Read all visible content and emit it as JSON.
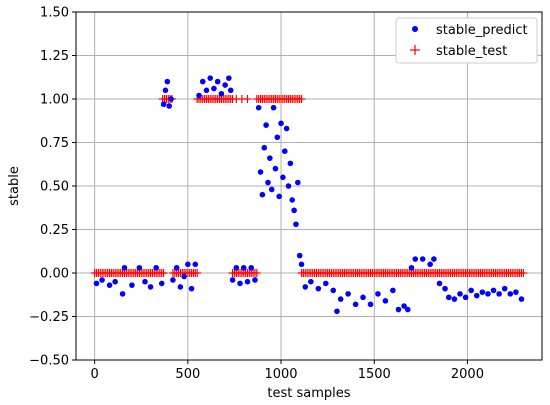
{
  "chart_data": {
    "type": "scatter",
    "xlabel": "test samples",
    "ylabel": "stable",
    "xlim": [
      -100,
      2400
    ],
    "ylim": [
      -0.5,
      1.5
    ],
    "xticks": [
      0,
      500,
      1000,
      1500,
      2000
    ],
    "xtick_labels": [
      "0",
      "500",
      "1000",
      "1500",
      "2000"
    ],
    "yticks": [
      -0.5,
      -0.25,
      0.0,
      0.25,
      0.5,
      0.75,
      1.0,
      1.25,
      1.5
    ],
    "ytick_labels": [
      "−0.50",
      "−0.25",
      "0.00",
      "0.25",
      "0.50",
      "0.75",
      "1.00",
      "1.25",
      "1.50"
    ],
    "grid": true,
    "legend_position": "top-right",
    "series": [
      {
        "name": "stable_predict",
        "marker": "dot",
        "color": "#0000ff",
        "approximate_points": [
          [
            10,
            -0.06
          ],
          [
            40,
            -0.04
          ],
          [
            80,
            -0.07
          ],
          [
            110,
            -0.05
          ],
          [
            150,
            -0.12
          ],
          [
            160,
            0.03
          ],
          [
            200,
            -0.07
          ],
          [
            240,
            0.03
          ],
          [
            270,
            -0.05
          ],
          [
            300,
            -0.08
          ],
          [
            330,
            0.03
          ],
          [
            360,
            -0.06
          ],
          [
            370,
            0.97
          ],
          [
            380,
            1.05
          ],
          [
            390,
            1.1
          ],
          [
            400,
            0.96
          ],
          [
            410,
            1.0
          ],
          [
            420,
            -0.04
          ],
          [
            440,
            0.03
          ],
          [
            460,
            -0.08
          ],
          [
            480,
            -0.02
          ],
          [
            500,
            0.05
          ],
          [
            520,
            -0.09
          ],
          [
            540,
            0.05
          ],
          [
            560,
            1.02
          ],
          [
            580,
            1.1
          ],
          [
            600,
            1.05
          ],
          [
            620,
            1.12
          ],
          [
            640,
            1.06
          ],
          [
            660,
            1.1
          ],
          [
            680,
            1.03
          ],
          [
            700,
            1.08
          ],
          [
            720,
            1.12
          ],
          [
            730,
            1.05
          ],
          [
            740,
            -0.04
          ],
          [
            760,
            0.03
          ],
          [
            780,
            -0.06
          ],
          [
            800,
            0.03
          ],
          [
            820,
            -0.05
          ],
          [
            840,
            0.03
          ],
          [
            860,
            -0.04
          ],
          [
            880,
            0.95
          ],
          [
            890,
            0.58
          ],
          [
            900,
            0.45
          ],
          [
            910,
            0.72
          ],
          [
            920,
            0.85
          ],
          [
            930,
            0.52
          ],
          [
            940,
            0.66
          ],
          [
            950,
            0.48
          ],
          [
            960,
            0.95
          ],
          [
            970,
            0.6
          ],
          [
            980,
            0.78
          ],
          [
            990,
            0.44
          ],
          [
            1000,
            0.86
          ],
          [
            1010,
            0.55
          ],
          [
            1020,
            0.7
          ],
          [
            1030,
            0.83
          ],
          [
            1040,
            0.5
          ],
          [
            1050,
            0.63
          ],
          [
            1060,
            0.42
          ],
          [
            1070,
            0.36
          ],
          [
            1080,
            0.28
          ],
          [
            1090,
            0.52
          ],
          [
            1100,
            0.1
          ],
          [
            1110,
            0.05
          ],
          [
            1130,
            -0.08
          ],
          [
            1160,
            -0.05
          ],
          [
            1200,
            -0.09
          ],
          [
            1240,
            -0.06
          ],
          [
            1280,
            -0.1
          ],
          [
            1300,
            -0.22
          ],
          [
            1320,
            -0.15
          ],
          [
            1360,
            -0.12
          ],
          [
            1400,
            -0.18
          ],
          [
            1440,
            -0.14
          ],
          [
            1480,
            -0.18
          ],
          [
            1520,
            -0.12
          ],
          [
            1560,
            -0.16
          ],
          [
            1600,
            -0.1
          ],
          [
            1630,
            -0.21
          ],
          [
            1660,
            -0.19
          ],
          [
            1680,
            -0.21
          ],
          [
            1700,
            0.03
          ],
          [
            1720,
            0.08
          ],
          [
            1760,
            0.08
          ],
          [
            1800,
            0.05
          ],
          [
            1820,
            0.08
          ],
          [
            1850,
            -0.06
          ],
          [
            1880,
            -0.09
          ],
          [
            1900,
            -0.14
          ],
          [
            1930,
            -0.15
          ],
          [
            1960,
            -0.12
          ],
          [
            1990,
            -0.14
          ],
          [
            2020,
            -0.1
          ],
          [
            2050,
            -0.13
          ],
          [
            2080,
            -0.11
          ],
          [
            2110,
            -0.12
          ],
          [
            2140,
            -0.1
          ],
          [
            2170,
            -0.12
          ],
          [
            2200,
            -0.09
          ],
          [
            2230,
            -0.12
          ],
          [
            2260,
            -0.11
          ],
          [
            2290,
            -0.15
          ]
        ]
      },
      {
        "name": "stable_test",
        "marker": "plus",
        "color": "#ff0000",
        "segments_at_one": [
          [
            365,
            420
          ],
          [
            550,
            740
          ],
          [
            870,
            1110
          ]
        ],
        "sparse_at_one": [
          760,
          790,
          820
        ],
        "segments_at_zero": [
          [
            0,
            370
          ],
          [
            420,
            555
          ],
          [
            740,
            870
          ],
          [
            1110,
            2300
          ]
        ]
      }
    ]
  }
}
